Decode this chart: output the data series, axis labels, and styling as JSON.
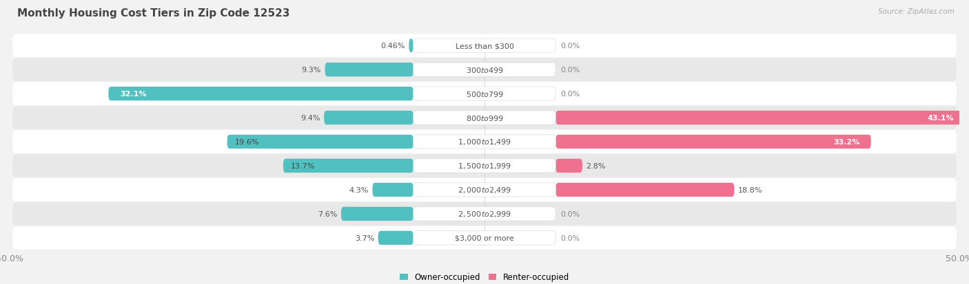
{
  "title": "Monthly Housing Cost Tiers in Zip Code 12523",
  "source": "Source: ZipAtlas.com",
  "categories": [
    "Less than $300",
    "$300 to $499",
    "$500 to $799",
    "$800 to $999",
    "$1,000 to $1,499",
    "$1,500 to $1,999",
    "$2,000 to $2,499",
    "$2,500 to $2,999",
    "$3,000 or more"
  ],
  "owner_values": [
    0.46,
    9.3,
    32.1,
    9.4,
    19.6,
    13.7,
    4.3,
    7.6,
    3.7
  ],
  "renter_values": [
    0.0,
    0.0,
    0.0,
    43.1,
    33.2,
    2.8,
    18.8,
    0.0,
    0.0
  ],
  "owner_color": "#50C0C0",
  "renter_color": "#F07090",
  "owner_label": "Owner-occupied",
  "renter_label": "Renter-occupied",
  "xlim": 50.0,
  "background_color": "#f2f2f2",
  "row_color_even": "#ffffff",
  "row_color_odd": "#e8e8e8",
  "title_fontsize": 11,
  "source_fontsize": 7.5,
  "value_fontsize": 8,
  "cat_fontsize": 8,
  "legend_fontsize": 8.5
}
